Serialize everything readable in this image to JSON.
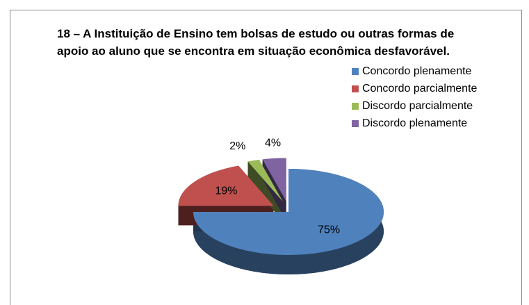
{
  "chart_data": {
    "type": "pie3d",
    "title": "18 – A Instituição de Ensino tem bolsas de estudo ou outras formas de apoio ao aluno que se encontra em situação econômica desfavorável.",
    "categories": [
      "Concordo plenamente",
      "Concordo parcialmente",
      "Discordo parcialmente",
      "Discordo plenamente"
    ],
    "values": [
      75,
      19,
      2,
      4
    ],
    "value_labels": [
      "75%",
      "19%",
      "2%",
      "4%"
    ],
    "colors": [
      "#4f81bd",
      "#c0504d",
      "#9bbb59",
      "#8064a2"
    ],
    "legend": "right"
  }
}
